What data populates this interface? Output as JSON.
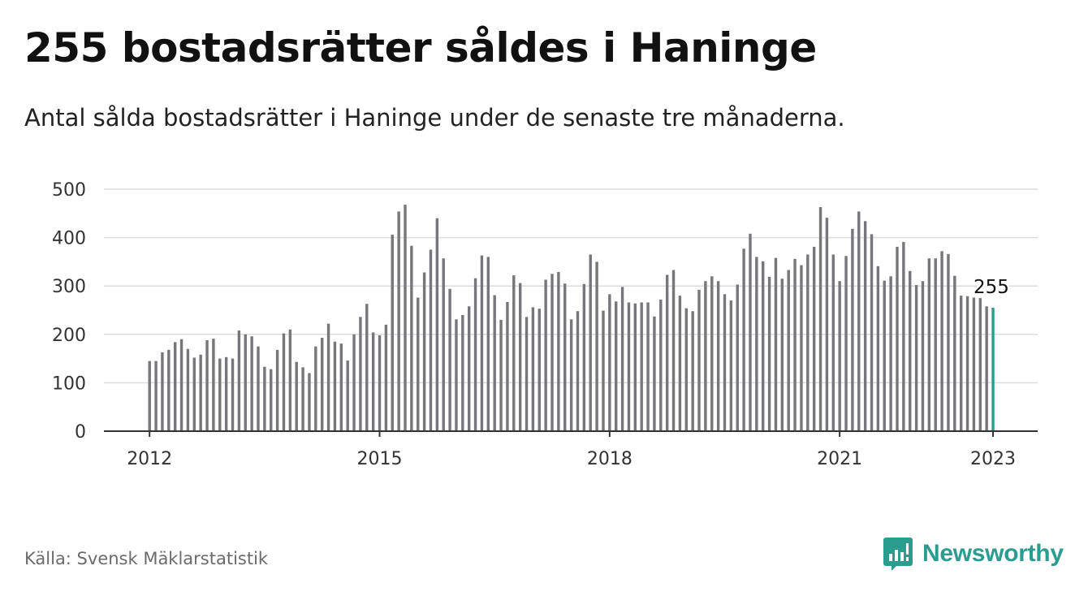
{
  "title": "255 bostadsrätter såldes i Haninge",
  "subtitle": "Antal sålda bostadsrätter i Haninge under de senaste tre månaderna.",
  "source": "Källa: Svensk Mäklarstatistik",
  "brand": "Newsworthy",
  "colors": {
    "bar": "#76767b",
    "highlight": "#2a9d8f",
    "grid": "#dcdcdc",
    "axis": "#333333",
    "brand": "#2a9d8f"
  },
  "chart_data": {
    "type": "bar",
    "xlabel": "",
    "ylabel": "",
    "ylim": [
      0,
      500
    ],
    "yticks": [
      "0",
      "100",
      "200",
      "300",
      "400",
      "500"
    ],
    "xticks": [
      "2012",
      "2015",
      "2018",
      "2021",
      "2023"
    ],
    "grid": true,
    "highlight_label": "255",
    "start": "2012-01",
    "values": [
      145,
      145,
      163,
      168,
      184,
      190,
      170,
      152,
      158,
      188,
      191,
      150,
      153,
      150,
      208,
      200,
      196,
      175,
      133,
      128,
      168,
      202,
      210,
      143,
      132,
      120,
      175,
      193,
      222,
      185,
      181,
      146,
      200,
      236,
      263,
      204,
      198,
      220,
      406,
      454,
      468,
      383,
      276,
      328,
      375,
      440,
      357,
      294,
      231,
      240,
      258,
      316,
      363,
      360,
      281,
      230,
      267,
      322,
      306,
      236,
      256,
      253,
      313,
      325,
      329,
      305,
      231,
      248,
      304,
      365,
      350,
      249,
      283,
      268,
      298,
      266,
      264,
      266,
      266,
      237,
      272,
      323,
      333,
      280,
      254,
      248,
      292,
      310,
      320,
      310,
      283,
      270,
      303,
      377,
      408,
      360,
      351,
      319,
      358,
      315,
      333,
      356,
      343,
      365,
      381,
      463,
      441,
      365,
      310,
      362,
      418,
      454,
      434,
      407,
      341,
      311,
      320,
      381,
      391,
      331,
      302,
      310,
      357,
      357,
      372,
      366,
      321,
      280,
      279,
      276,
      275,
      258,
      255
    ]
  }
}
